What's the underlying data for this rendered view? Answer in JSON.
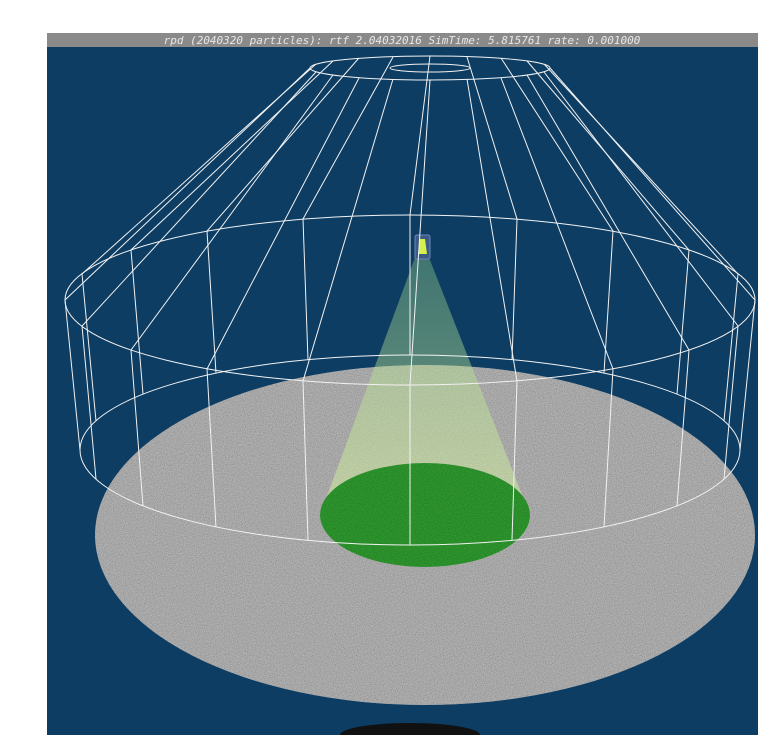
{
  "window": {
    "title_bar": "rpd (2040320 particles): rtf 2.04032016 SimTime: 5.815761 rate: 0.001000"
  }
}
